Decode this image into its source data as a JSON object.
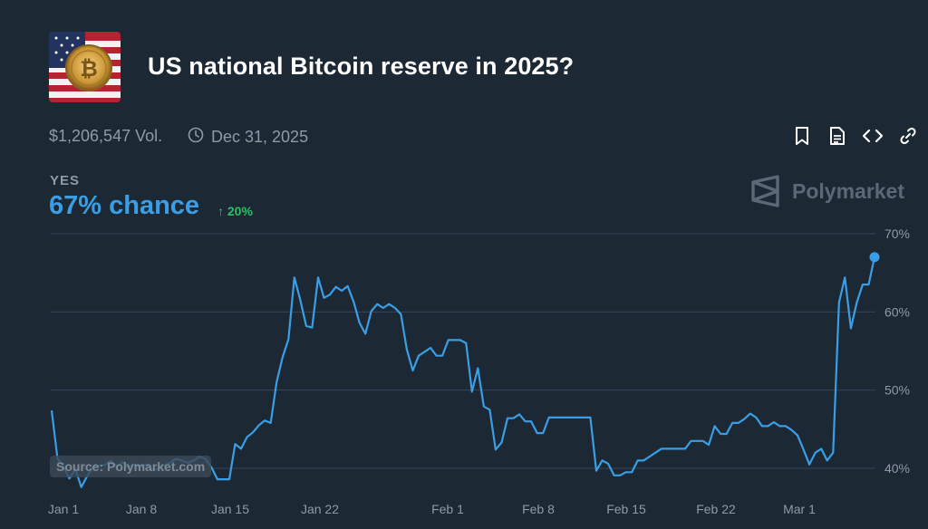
{
  "header": {
    "title": "US national Bitcoin reserve in 2025?",
    "volume": "$1,206,547 Vol.",
    "end_date": "Dec 31, 2025"
  },
  "toolbar": {
    "icons": [
      "bookmark-icon",
      "document-icon",
      "embed-code-icon",
      "link-icon"
    ]
  },
  "outcome": {
    "label": "YES",
    "chance": "67% chance",
    "change": "20%"
  },
  "brand": {
    "name": "Polymarket"
  },
  "source": "Source: Polymarket.com",
  "colors": {
    "background": "#1d2835",
    "line": "#3a9ee4",
    "up": "#29c165",
    "muted": "#8f9aa7",
    "grid": "#38455a"
  },
  "chart_data": {
    "type": "line",
    "title": "",
    "xlabel": "",
    "ylabel": "",
    "series": [
      {
        "values": [
          47.4,
          41.2,
          40.2,
          38.7,
          39.9,
          37.6,
          39.0,
          40.2,
          40.3,
          40.4,
          41.0,
          40.2,
          40.8,
          40.1,
          40.5,
          40.2,
          40.5,
          39.8,
          39.9,
          40.4,
          40.7,
          41.2,
          41.0,
          40.7,
          41.0,
          41.5,
          41.2,
          40.1,
          38.6,
          38.6,
          38.6,
          43.1,
          42.5,
          44.0,
          44.6,
          45.5,
          46.1,
          45.8,
          51.0,
          54.2,
          56.5,
          64.4,
          61.5,
          58.2,
          58.0,
          64.4,
          61.8,
          62.2,
          63.2,
          62.7,
          63.3,
          61.3,
          58.6,
          57.2,
          60.1,
          61.0,
          60.5,
          61.0,
          60.5,
          59.7,
          55.2,
          52.5,
          54.4,
          54.9,
          55.4,
          54.4,
          54.4,
          56.4,
          56.4,
          56.4,
          56.0,
          49.8,
          52.8,
          47.9,
          47.5,
          42.4,
          43.3,
          46.4,
          46.4,
          46.9,
          46.0,
          46.0,
          44.5,
          44.5,
          46.5,
          46.5,
          46.5,
          46.5,
          46.5,
          46.5,
          46.5,
          46.5,
          39.7,
          41.0,
          40.6,
          39.1,
          39.1,
          39.5,
          39.5,
          41.0,
          41.0,
          41.5,
          42.0,
          42.5,
          42.5,
          42.5,
          42.5,
          42.5,
          43.5,
          43.5,
          43.5,
          43.0,
          45.4,
          44.4,
          44.4,
          45.8,
          45.8,
          46.3,
          47.0,
          46.5,
          45.4,
          45.4,
          45.9,
          45.4,
          45.4,
          44.9,
          44.2,
          42.4,
          40.5,
          42.0,
          42.5,
          41.0,
          42.0,
          61.2,
          64.4,
          57.9,
          61.2,
          63.5,
          63.5,
          67.0
        ]
      }
    ],
    "x_tick_labels": [
      "Jan 1",
      "Jan 8",
      "Jan 15",
      "Jan 22",
      "Feb 1",
      "Feb 8",
      "Feb 15",
      "Feb 22",
      "Mar 1"
    ],
    "y_tick_labels": [
      "70%",
      "60%",
      "50%",
      "40%"
    ],
    "y_ticks": [
      70,
      60,
      50,
      40
    ],
    "ylim": [
      37.5,
      70
    ],
    "grid": true,
    "legend": "none"
  }
}
